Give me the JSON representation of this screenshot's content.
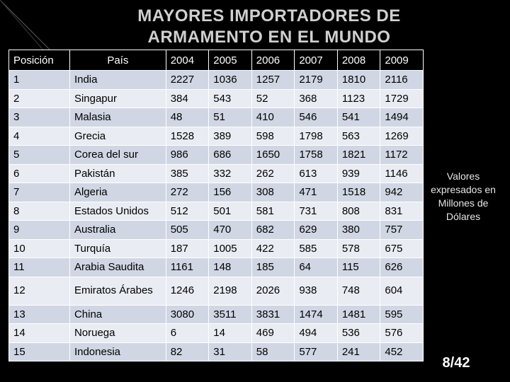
{
  "title": "MAYORES IMPORTADORES DE ARMAMENTO EN EL MUNDO",
  "table": {
    "headers": [
      "Posición",
      "País",
      "2004",
      "2005",
      "2006",
      "2007",
      "2008",
      "2009"
    ],
    "rows": [
      [
        "1",
        "India",
        "2227",
        "1036",
        "1257",
        "2179",
        "1810",
        "2116"
      ],
      [
        "2",
        "Singapur",
        "384",
        "543",
        "52",
        "368",
        "1123",
        "1729"
      ],
      [
        "3",
        "Malasia",
        "48",
        "51",
        "410",
        "546",
        "541",
        "1494"
      ],
      [
        "4",
        "Grecia",
        "1528",
        "389",
        "598",
        "1798",
        "563",
        "1269"
      ],
      [
        "5",
        "Corea del sur",
        "986",
        "686",
        "1650",
        "1758",
        "1821",
        "1172"
      ],
      [
        "6",
        "Pakistán",
        "385",
        "332",
        "262",
        "613",
        "939",
        "1146"
      ],
      [
        "7",
        "Algeria",
        "272",
        "156",
        "308",
        "471",
        "1518",
        "942"
      ],
      [
        "8",
        "Estados Unidos",
        "512",
        "501",
        "581",
        "731",
        "808",
        "831"
      ],
      [
        "9",
        "Australia",
        "505",
        "470",
        "682",
        "629",
        "380",
        "757"
      ],
      [
        "10",
        "Turquía",
        "187",
        "1005",
        "422",
        "585",
        "578",
        "675"
      ],
      [
        "11",
        "Arabia Saudita",
        "1161",
        "148",
        "185",
        "64",
        "115",
        "626"
      ],
      [
        "12",
        "Emiratos Árabes",
        "1246",
        "2198",
        "2026",
        "938",
        "748",
        "604"
      ],
      [
        "13",
        "China",
        "3080",
        "3511",
        "3831",
        "1474",
        "1481",
        "595"
      ],
      [
        "14",
        "Noruega",
        "6",
        "14",
        "469",
        "494",
        "536",
        "576"
      ],
      [
        "15",
        "Indonesia",
        "82",
        "31",
        "58",
        "577",
        "241",
        "452"
      ]
    ]
  },
  "note": "Valores expresados en Millones de Dólares",
  "page_number": "8/42",
  "colors": {
    "background": "#000000",
    "row_odd": "#d0d6e3",
    "row_even": "#e9ecf2",
    "title_text": "#d0d0d0"
  }
}
